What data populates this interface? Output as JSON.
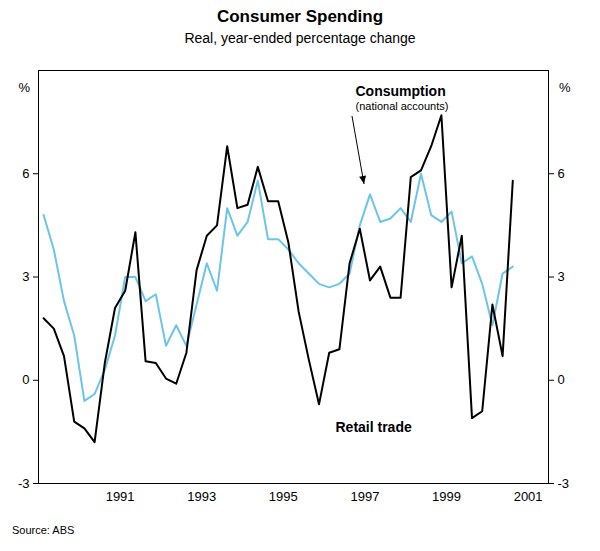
{
  "chart_data": {
    "type": "line",
    "title": "Consumer Spending",
    "subtitle": "Real, year-ended percentage change",
    "source": "Source: ABS",
    "y_label": "%",
    "annotations": [
      {
        "text": "(national accounts)"
      }
    ],
    "x": [
      1989.625,
      1989.875,
      1990.125,
      1990.375,
      1990.625,
      1990.875,
      1991.125,
      1991.375,
      1991.625,
      1991.875,
      1992.125,
      1992.375,
      1992.625,
      1992.875,
      1993.125,
      1993.375,
      1993.625,
      1993.875,
      1994.125,
      1994.375,
      1994.625,
      1994.875,
      1995.125,
      1995.375,
      1995.625,
      1995.875,
      1996.125,
      1996.375,
      1996.625,
      1996.875,
      1997.125,
      1997.375,
      1997.625,
      1997.875,
      1998.125,
      1998.375,
      1998.625,
      1998.875,
      1999.125,
      1999.375,
      1999.625,
      1999.875,
      2000.125,
      2000.375,
      2000.625,
      2000.875,
      2001.125
    ],
    "series": [
      {
        "name": "Consumption",
        "color": "#6cc5e9",
        "values": [
          4.8,
          3.8,
          2.3,
          1.3,
          -0.6,
          -0.4,
          0.3,
          1.3,
          3.0,
          3.0,
          2.3,
          2.5,
          1.0,
          1.6,
          1.0,
          2.2,
          3.4,
          2.6,
          5.0,
          4.2,
          4.6,
          5.8,
          4.1,
          4.1,
          3.8,
          3.4,
          3.1,
          2.8,
          2.7,
          2.8,
          3.1,
          4.5,
          5.4,
          4.6,
          4.7,
          5.0,
          4.6,
          6.0,
          4.8,
          4.6,
          4.9,
          3.4,
          3.6,
          2.8,
          1.6,
          3.1,
          3.3
        ]
      },
      {
        "name": "Retail trade",
        "color": "#000000",
        "values": [
          1.8,
          1.5,
          0.7,
          -1.2,
          -1.4,
          -1.8,
          0.5,
          2.1,
          2.6,
          4.3,
          0.55,
          0.5,
          0.05,
          -0.1,
          0.8,
          3.2,
          4.2,
          4.5,
          6.8,
          5.0,
          5.1,
          6.2,
          5.2,
          5.2,
          4.0,
          2.0,
          0.6,
          -0.7,
          0.8,
          0.9,
          3.4,
          4.4,
          2.9,
          3.3,
          2.4,
          2.4,
          5.9,
          6.1,
          6.8,
          7.7,
          2.7,
          4.2,
          -1.1,
          -0.9,
          2.2,
          0.7,
          5.8
        ]
      }
    ],
    "xlim": [
      1989.5,
      2002
    ],
    "xticks": [
      {
        "value": 1991.5,
        "label": "1991"
      },
      {
        "value": 1993.5,
        "label": "1993"
      },
      {
        "value": 1995.5,
        "label": "1995"
      },
      {
        "value": 1997.5,
        "label": "1997"
      },
      {
        "value": 1999.5,
        "label": "1999"
      },
      {
        "value": 2001.5,
        "label": "2001"
      }
    ],
    "ylim": [
      -3,
      9
    ],
    "yticks": [
      -3,
      0,
      3,
      6
    ],
    "grid": false
  }
}
